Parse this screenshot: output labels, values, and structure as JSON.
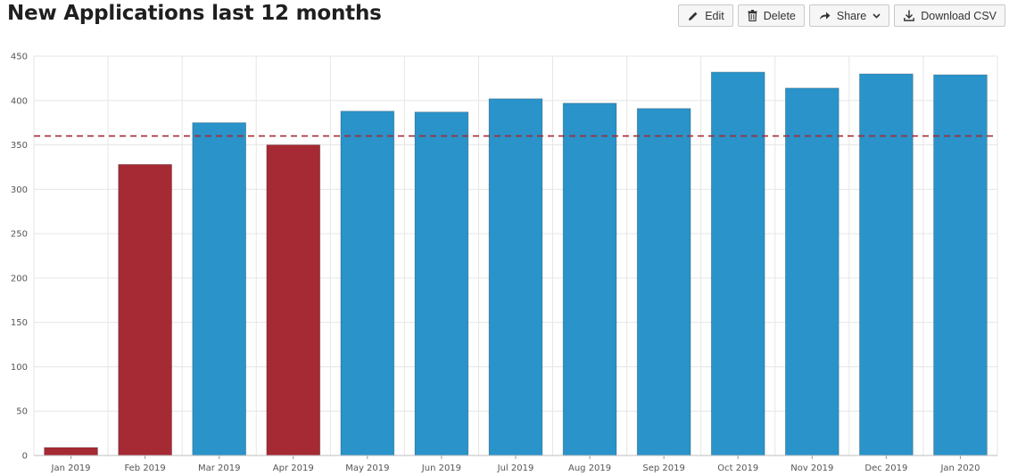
{
  "header": {
    "title": "New Applications last 12 months"
  },
  "toolbar": {
    "edit_label": "Edit",
    "delete_label": "Delete",
    "share_label": "Share",
    "download_label": "Download CSV",
    "icons": {
      "edit": "pencil-icon",
      "delete": "trash-icon",
      "share": "share-arrow-icon",
      "share_menu": "chevron-down-icon",
      "download": "download-icon"
    }
  },
  "colors": {
    "above_target": "#2a93c9",
    "below_target": "#a52a33",
    "target_line": "#a52a33",
    "grid": "#e6e6e6"
  },
  "chart_data": {
    "type": "bar",
    "title": "New Applications last 12 months",
    "xlabel": "",
    "ylabel": "",
    "ylim": [
      0,
      450
    ],
    "yticks": [
      0,
      50,
      100,
      150,
      200,
      250,
      300,
      350,
      400,
      450
    ],
    "grid": true,
    "categories": [
      "Jan 2019",
      "Feb 2019",
      "Mar 2019",
      "Apr 2019",
      "May 2019",
      "Jun 2019",
      "Jul 2019",
      "Aug 2019",
      "Sep 2019",
      "Oct 2019",
      "Nov 2019",
      "Dec 2019",
      "Jan 2020"
    ],
    "values": [
      9,
      328,
      375,
      350,
      388,
      387,
      402,
      397,
      391,
      432,
      414,
      430,
      429
    ],
    "target": 360,
    "target_style": "dashed"
  }
}
